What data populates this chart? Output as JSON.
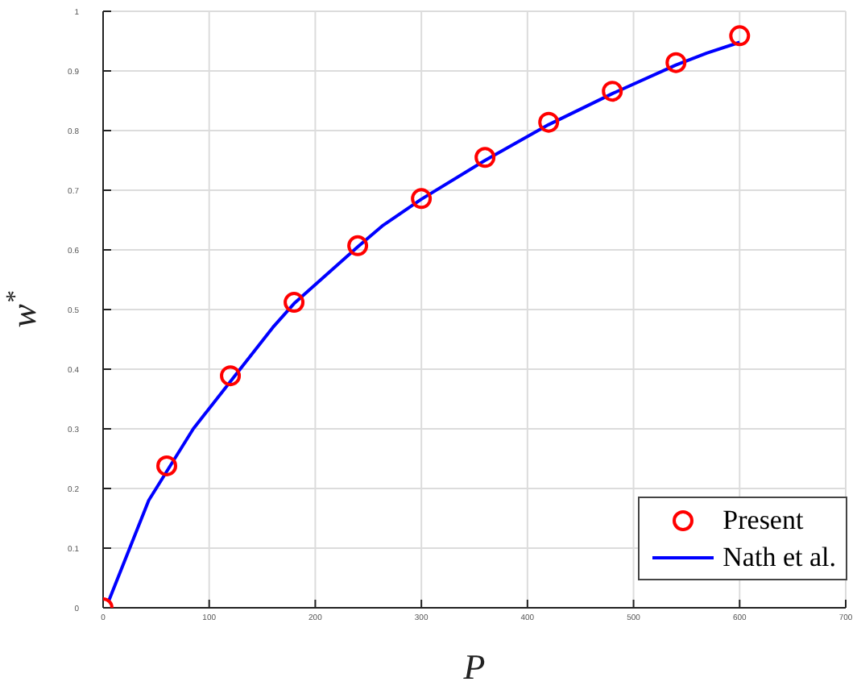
{
  "chart_data": {
    "type": "line",
    "xlabel": "P",
    "ylabel": "w$^{*}$",
    "xlim": [
      0,
      700
    ],
    "ylim": [
      0,
      1
    ],
    "xticks": [
      0,
      100,
      200,
      300,
      400,
      500,
      600,
      700
    ],
    "yticks": [
      0,
      0.1,
      0.2,
      0.3,
      0.4,
      0.5,
      0.6,
      0.7,
      0.8,
      0.9,
      1
    ],
    "grid": true,
    "legend": "bottom right",
    "series": [
      {
        "name": "Present",
        "type": "scatter",
        "marker": "circle",
        "color": "#ff0000",
        "x": [
          0,
          60,
          120,
          180,
          240,
          300,
          360,
          420,
          480,
          540,
          600
        ],
        "values": [
          0,
          0.238,
          0.389,
          0.512,
          0.607,
          0.686,
          0.755,
          0.814,
          0.866,
          0.914,
          0.959
        ]
      },
      {
        "name": "Nath et al.",
        "marker": "none",
        "line_style": "solid",
        "color": "#0000ff",
        "x": [
          5,
          43,
          85,
          160,
          180,
          240,
          263,
          300,
          360,
          420,
          480,
          540,
          569,
          600
        ],
        "values": [
          0.01,
          0.18,
          0.3,
          0.47,
          0.51,
          0.605,
          0.64,
          0.685,
          0.75,
          0.81,
          0.862,
          0.91,
          0.93,
          0.948
        ]
      }
    ]
  }
}
